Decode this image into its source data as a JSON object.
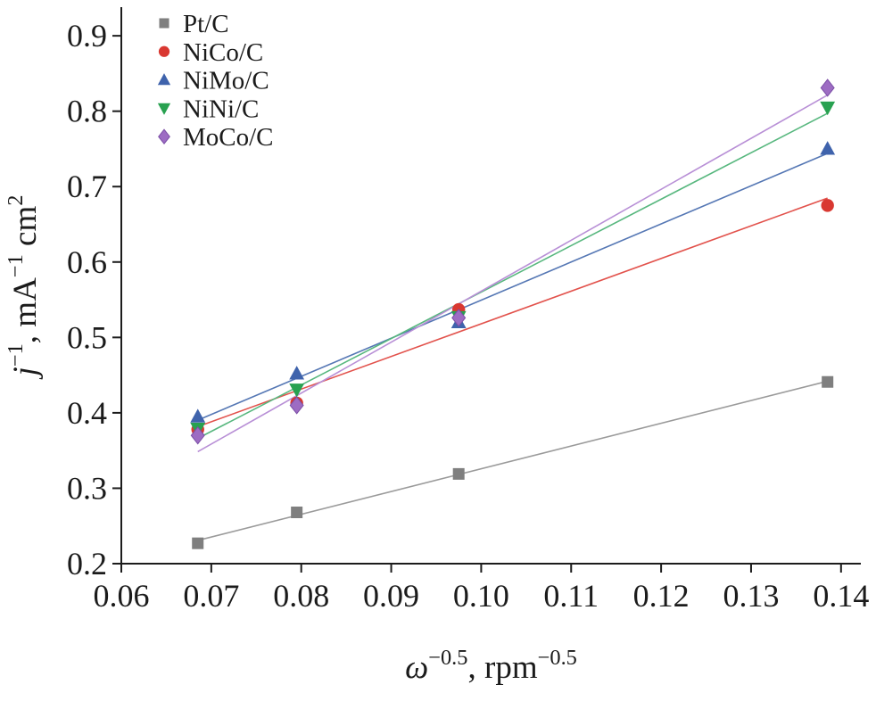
{
  "chart_data": {
    "type": "scatter",
    "title": "",
    "xlabel_parts": [
      {
        "t": "ω",
        "italic": true
      },
      {
        "t": "−0.5",
        "sup": true
      },
      {
        "t": ", rpm"
      },
      {
        "t": "−0.5",
        "sup": true
      }
    ],
    "ylabel_parts": [
      {
        "t": "j",
        "italic": true
      },
      {
        "t": "−1",
        "sup": true
      },
      {
        "t": ", mA"
      },
      {
        "t": "−1",
        "sup": true
      },
      {
        "t": " cm"
      },
      {
        "t": "2",
        "sup": true
      }
    ],
    "x": [
      0.0685,
      0.0795,
      0.0975,
      0.1385
    ],
    "series": [
      {
        "name": "Pt/C",
        "marker": "square",
        "color": "#7f7f7f",
        "line_color": "#9a9a9a",
        "values": [
          0.227,
          0.268,
          0.319,
          0.441
        ]
      },
      {
        "name": "NiCo/C",
        "marker": "circle",
        "color": "#d93831",
        "line_color": "#e2524c",
        "values": [
          0.378,
          0.413,
          0.537,
          0.675
        ]
      },
      {
        "name": "NiMo/C",
        "marker": "triangle-up",
        "color": "#3f63ac",
        "line_color": "#5577b4",
        "values": [
          0.395,
          0.452,
          0.52,
          0.75
        ]
      },
      {
        "name": "NiNi/C",
        "marker": "triangle-down",
        "color": "#28a150",
        "line_color": "#57b77e",
        "values": [
          0.379,
          0.431,
          0.527,
          0.805
        ]
      },
      {
        "name": "MoCo/C",
        "marker": "diamond",
        "color": "#9d6cc3",
        "edge_color": "#7b4fa6",
        "line_color": "#b88fd6",
        "values": [
          0.37,
          0.41,
          0.526,
          0.831
        ]
      }
    ],
    "fit_lines": true,
    "x_ticks": [
      0.06,
      0.07,
      0.08,
      0.09,
      0.1,
      0.11,
      0.12,
      0.13,
      0.14
    ],
    "x_tick_labels": [
      "0.06",
      "0.07",
      "0.08",
      "0.09",
      "0.10",
      "0.11",
      "0.12",
      "0.13",
      "0.14"
    ],
    "y_ticks": [
      0.2,
      0.3,
      0.4,
      0.5,
      0.6,
      0.7,
      0.8,
      0.9
    ],
    "y_tick_labels": [
      "0.2",
      "0.3",
      "0.4",
      "0.5",
      "0.6",
      "0.7",
      "0.8",
      "0.9"
    ],
    "xlim": [
      0.06,
      0.1422
    ],
    "ylim": [
      0.2,
      0.938
    ],
    "grid": false,
    "legend_position": "top-left",
    "axis_color": "#1c1c1c",
    "text_color": "#1b1b1b"
  }
}
